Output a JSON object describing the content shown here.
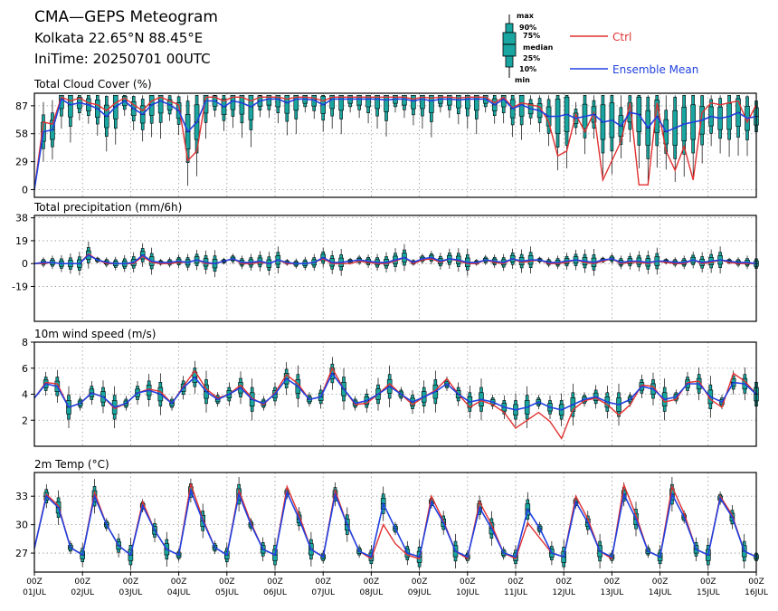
{
  "header": {
    "title": "CMA—GEPS Meteogram",
    "location": "Kolkata 22.65°N 88.45°E",
    "init_time": "IniTime: 20250701 00UTC"
  },
  "legend": {
    "box_labels": [
      "max",
      "90%",
      "75%",
      "median",
      "25%",
      "10%",
      "min"
    ],
    "ctrl_label": "Ctrl",
    "mean_label": "Ensemble Mean"
  },
  "colors": {
    "ctrl": "#e03030",
    "mean": "#2040e0",
    "box_fill": "#1aa6a0",
    "box_edge": "#000000",
    "grid": "#9a9a9a"
  },
  "time_axis": {
    "step_hours": 6,
    "ticks_top": [
      "00Z",
      "00Z",
      "00Z",
      "00Z",
      "00Z",
      "00Z",
      "00Z",
      "00Z",
      "00Z",
      "00Z",
      "00Z",
      "00Z",
      "00Z",
      "00Z",
      "00Z",
      "00Z"
    ],
    "ticks_bottom": [
      "01JUL",
      "02JUL",
      "03JUL",
      "04JUL",
      "05JUL",
      "06JUL",
      "07JUL",
      "08JUL",
      "09JUL",
      "10JUL",
      "11JUL",
      "12JUL",
      "13JUL",
      "14JUL",
      "15JUL",
      "16JUL"
    ]
  },
  "chart_data": [
    {
      "type": "line",
      "title": "Total Cloud Cover (%)",
      "ylim": [
        -8,
        100
      ],
      "yticks": [
        0,
        29,
        58,
        87
      ],
      "ctrl": [
        0,
        70,
        68,
        96,
        92,
        95,
        90,
        88,
        82,
        90,
        95,
        88,
        82,
        92,
        96,
        92,
        88,
        30,
        40,
        96,
        96,
        92,
        96,
        96,
        92,
        96,
        96,
        96,
        94,
        96,
        96,
        95,
        92,
        96,
        96,
        96,
        96,
        96,
        96,
        96,
        96,
        96,
        94,
        96,
        95,
        96,
        96,
        95,
        96,
        96,
        96,
        90,
        96,
        85,
        90,
        88,
        86,
        70,
        35,
        40,
        78,
        60,
        80,
        10,
        30,
        50,
        90,
        5,
        5,
        90,
        40,
        20,
        45,
        10,
        80,
        90,
        88,
        90,
        92,
        70,
        88
      ],
      "mean": [
        0,
        60,
        62,
        94,
        88,
        90,
        88,
        84,
        76,
        86,
        92,
        84,
        78,
        88,
        92,
        88,
        82,
        60,
        70,
        92,
        92,
        86,
        92,
        90,
        86,
        92,
        94,
        94,
        90,
        94,
        94,
        93,
        88,
        94,
        94,
        94,
        94,
        94,
        94,
        93,
        94,
        94,
        92,
        94,
        92,
        94,
        94,
        93,
        94,
        94,
        94,
        88,
        94,
        84,
        88,
        84,
        82,
        76,
        76,
        78,
        74,
        76,
        78,
        70,
        72,
        66,
        80,
        78,
        64,
        76,
        60,
        64,
        68,
        70,
        72,
        76,
        74,
        76,
        80,
        74,
        76
      ],
      "box_every": 1
    },
    {
      "type": "line",
      "title": "Total precipitation (mm/6h)",
      "ylim": [
        -48,
        40
      ],
      "yticks": [
        -19,
        0,
        19,
        38
      ],
      "ctrl": [
        0,
        0,
        1,
        0,
        0,
        0,
        8,
        3,
        0,
        0,
        0,
        0,
        6,
        1,
        0,
        0,
        1,
        1,
        3,
        0,
        0,
        2,
        4,
        0,
        0,
        1,
        0,
        3,
        0,
        0,
        0,
        1,
        4,
        0,
        0,
        0,
        2,
        1,
        0,
        0,
        2,
        5,
        0,
        3,
        4,
        1,
        4,
        2,
        0,
        0,
        3,
        1,
        0,
        4,
        1,
        2,
        3,
        0,
        0,
        1,
        3,
        1,
        0,
        2,
        4,
        0,
        1,
        1,
        0,
        2,
        1,
        0,
        0,
        3,
        0,
        1,
        3,
        1,
        0,
        0,
        0
      ],
      "mean": [
        0,
        1,
        1,
        0,
        0,
        0,
        7,
        3,
        1,
        0,
        0,
        1,
        7,
        2,
        1,
        1,
        2,
        1,
        3,
        1,
        0,
        2,
        4,
        1,
        1,
        2,
        0,
        3,
        1,
        0,
        0,
        1,
        5,
        1,
        1,
        2,
        3,
        2,
        1,
        1,
        3,
        5,
        1,
        4,
        5,
        2,
        4,
        3,
        1,
        1,
        3,
        2,
        1,
        4,
        2,
        3,
        3,
        1,
        1,
        2,
        3,
        2,
        1,
        3,
        4,
        1,
        2,
        2,
        1,
        2,
        2,
        1,
        1,
        3,
        1,
        2,
        3,
        2,
        1,
        1,
        0
      ],
      "box_every": 1
    },
    {
      "type": "line",
      "title": "10m wind speed (m/s)",
      "ylim": [
        0,
        8
      ],
      "yticks": [
        2,
        4,
        6,
        8
      ],
      "ctrl": [
        3.7,
        4.9,
        4.8,
        3.0,
        3.3,
        4.1,
        3.8,
        2.9,
        3.3,
        4.1,
        4.4,
        4.2,
        3.3,
        4.6,
        5.8,
        4.4,
        3.7,
        4.0,
        4.7,
        3.7,
        3.2,
        4.1,
        5.5,
        4.8,
        3.6,
        3.8,
        6.0,
        4.4,
        3.2,
        3.3,
        4.0,
        4.8,
        4.0,
        3.2,
        3.8,
        4.3,
        5.2,
        4.0,
        3.0,
        3.5,
        3.2,
        2.6,
        1.4,
        2.0,
        2.6,
        1.9,
        0.6,
        2.8,
        3.5,
        3.7,
        3.2,
        2.4,
        3.2,
        4.7,
        4.6,
        3.4,
        3.6,
        4.9,
        5.0,
        3.6,
        3.0,
        5.6,
        5.0,
        4.0
      ],
      "mean": [
        3.7,
        4.8,
        4.6,
        3.0,
        3.3,
        4.1,
        3.8,
        3.0,
        3.3,
        4.1,
        4.3,
        4.0,
        3.3,
        4.5,
        5.3,
        4.2,
        3.6,
        4.0,
        4.5,
        3.6,
        3.3,
        4.0,
        5.2,
        4.6,
        3.6,
        3.8,
        5.6,
        4.4,
        3.3,
        3.5,
        4.0,
        4.6,
        4.0,
        3.4,
        3.8,
        4.2,
        4.8,
        4.0,
        3.4,
        3.6,
        3.4,
        3.0,
        2.8,
        3.0,
        3.4,
        3.0,
        2.8,
        3.2,
        3.6,
        3.8,
        3.4,
        3.2,
        3.6,
        4.6,
        4.4,
        3.6,
        3.8,
        4.8,
        4.8,
        3.8,
        3.4,
        4.9,
        4.8,
        4.0
      ],
      "box_every": 1
    },
    {
      "type": "line",
      "title": "2m Temp (°C)",
      "ylim": [
        25,
        35.5
      ],
      "yticks": [
        27,
        30,
        33
      ],
      "ctrl": [
        27.5,
        33.2,
        32.0,
        27.6,
        26.8,
        33.4,
        30.0,
        27.8,
        26.8,
        32.4,
        29.4,
        27.4,
        26.8,
        34.3,
        30.6,
        27.6,
        26.8,
        33.6,
        30.2,
        27.4,
        26.8,
        34.0,
        31.0,
        27.4,
        26.6,
        33.6,
        30.0,
        27.2,
        26.4,
        30.0,
        28.0,
        26.8,
        26.4,
        33.0,
        30.4,
        27.2,
        26.4,
        32.4,
        30.0,
        27.0,
        26.4,
        30.2,
        28.6,
        27.0,
        26.6,
        33.0,
        30.6,
        27.2,
        26.4,
        34.2,
        31.0,
        27.2,
        26.6,
        34.0,
        31.2,
        27.4,
        26.8,
        33.0,
        31.0,
        27.2,
        26.6
      ],
      "mean": [
        27.5,
        33.0,
        31.8,
        27.6,
        26.8,
        33.0,
        30.0,
        27.8,
        26.8,
        32.0,
        29.4,
        27.4,
        26.8,
        33.6,
        30.4,
        27.6,
        26.8,
        33.2,
        30.0,
        27.4,
        26.8,
        33.4,
        30.6,
        27.4,
        26.6,
        33.2,
        30.0,
        27.2,
        26.6,
        32.2,
        29.6,
        27.0,
        26.6,
        32.4,
        30.2,
        27.2,
        26.6,
        31.8,
        29.6,
        27.0,
        26.6,
        31.6,
        29.6,
        27.0,
        26.6,
        32.4,
        30.2,
        27.2,
        26.6,
        33.2,
        30.6,
        27.2,
        26.6,
        33.2,
        30.8,
        27.4,
        26.8,
        32.8,
        30.8,
        27.2,
        26.6
      ],
      "box_every": 1
    }
  ]
}
